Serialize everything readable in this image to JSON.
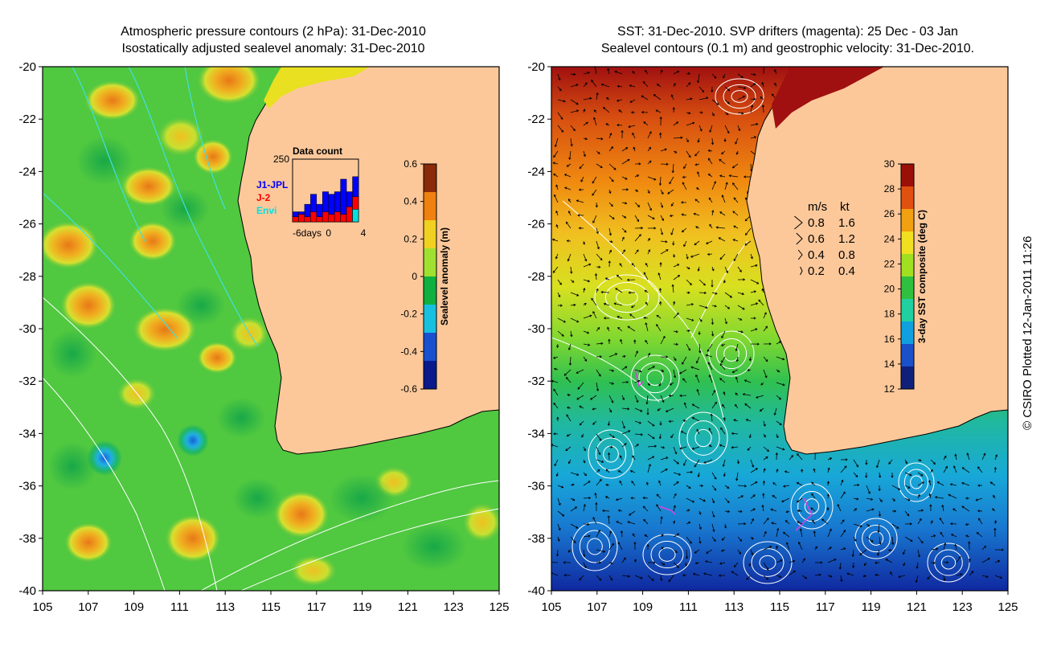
{
  "left_panel": {
    "title_line1": "Atmospheric pressure contours (2 hPa): 31-Dec-2010",
    "title_line2": "Isostatically adjusted sealevel anomaly: 31-Dec-2010",
    "colorbar": {
      "label": "Sealevel anomaly (m)",
      "ticks": [
        "0.6",
        "0.4",
        "0.2",
        "0",
        "-0.2",
        "-0.4",
        "-0.6"
      ],
      "colors": [
        "#0a1a8c",
        "#1850d0",
        "#18c0e0",
        "#10b040",
        "#a0e030",
        "#f0d020",
        "#f08010",
        "#8a2a08"
      ]
    },
    "inset": {
      "title": "Data count",
      "ymax_label": "250",
      "x_labels": [
        "-6days",
        "0",
        "4"
      ],
      "legend": [
        {
          "name": "J1-JPL",
          "color": "#0000ff"
        },
        {
          "name": "J-2",
          "color": "#ff0000"
        },
        {
          "name": "Envi",
          "color": "#00e0e0"
        }
      ],
      "blue_bars": [
        40,
        40,
        70,
        110,
        70,
        120,
        110,
        120,
        170,
        120,
        180
      ],
      "red_bars": [
        20,
        30,
        20,
        40,
        20,
        40,
        30,
        40,
        30,
        60,
        100
      ],
      "cyan_bars": [
        0,
        0,
        0,
        0,
        0,
        0,
        0,
        0,
        0,
        0,
        50
      ]
    }
  },
  "right_panel": {
    "title_line1": "SST: 31-Dec-2010. SVP drifters (magenta): 25 Dec - 03 Jan",
    "title_line2": "Sealevel contours (0.1 m) and geostrophic velocity: 31-Dec-2010.",
    "colorbar": {
      "label": "3-day SST composite (deg C)",
      "ticks": [
        "30",
        "28",
        "26",
        "24",
        "22",
        "20",
        "18",
        "16",
        "14",
        "12"
      ],
      "colors": [
        "#10207a",
        "#1a50c8",
        "#10a0e0",
        "#20d0a0",
        "#30c040",
        "#a0e020",
        "#f0e020",
        "#f0a010",
        "#e05010",
        "#9a1008"
      ]
    },
    "velocity_legend": {
      "header_ms": "m/s",
      "header_kt": "kt",
      "rows": [
        {
          "ms": "0.8",
          "kt": "1.6",
          "mag": 0.8
        },
        {
          "ms": "0.6",
          "kt": "1.2",
          "mag": 0.6
        },
        {
          "ms": "0.4",
          "kt": "0.8",
          "mag": 0.4
        },
        {
          "ms": "0.2",
          "kt": "0.4",
          "mag": 0.2
        }
      ]
    }
  },
  "axes": {
    "x_ticks": [
      "105",
      "107",
      "109",
      "111",
      "113",
      "115",
      "117",
      "119",
      "121",
      "123",
      "125"
    ],
    "y_ticks": [
      "-20",
      "-22",
      "-24",
      "-26",
      "-28",
      "-30",
      "-32",
      "-34",
      "-36",
      "-38",
      "-40"
    ],
    "lon_range": [
      105,
      125
    ],
    "lat_range": [
      -20,
      -40
    ]
  },
  "colors": {
    "land": "#fcc89a",
    "ocean_green": "#50c840",
    "pressure_contour": "#40e0e0",
    "coastline": "#000000"
  },
  "copyright": "© CSIRO Plotted 12-Jan-2011 11:26"
}
